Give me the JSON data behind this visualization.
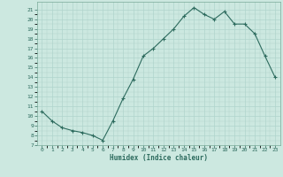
{
  "x": [
    0,
    1,
    2,
    3,
    4,
    5,
    6,
    7,
    8,
    9,
    10,
    11,
    12,
    13,
    14,
    15,
    16,
    17,
    18,
    19,
    20,
    21,
    22,
    23
  ],
  "y": [
    10.5,
    9.5,
    8.8,
    8.5,
    8.3,
    8.0,
    7.5,
    9.5,
    11.8,
    13.8,
    16.2,
    17.0,
    18.0,
    19.0,
    20.3,
    21.2,
    20.5,
    20.0,
    20.8,
    19.5,
    19.5,
    18.5,
    16.2,
    14.0
  ],
  "xlim": [
    -0.5,
    23.5
  ],
  "ylim": [
    7,
    21.8
  ],
  "yticks": [
    7,
    8,
    9,
    10,
    11,
    12,
    13,
    14,
    15,
    16,
    17,
    18,
    19,
    20,
    21
  ],
  "xticks": [
    0,
    1,
    2,
    3,
    4,
    5,
    6,
    7,
    8,
    9,
    10,
    11,
    12,
    13,
    14,
    15,
    16,
    17,
    18,
    19,
    20,
    21,
    22,
    23
  ],
  "xlabel": "Humidex (Indice chaleur)",
  "line_color": "#2d6b5e",
  "marker": "+",
  "bg_color": "#cce8e0",
  "grid_color": "#b0d4cc",
  "tick_color": "#2d6b5e",
  "label_color": "#2d6b5e",
  "spine_color": "#7aaa99"
}
